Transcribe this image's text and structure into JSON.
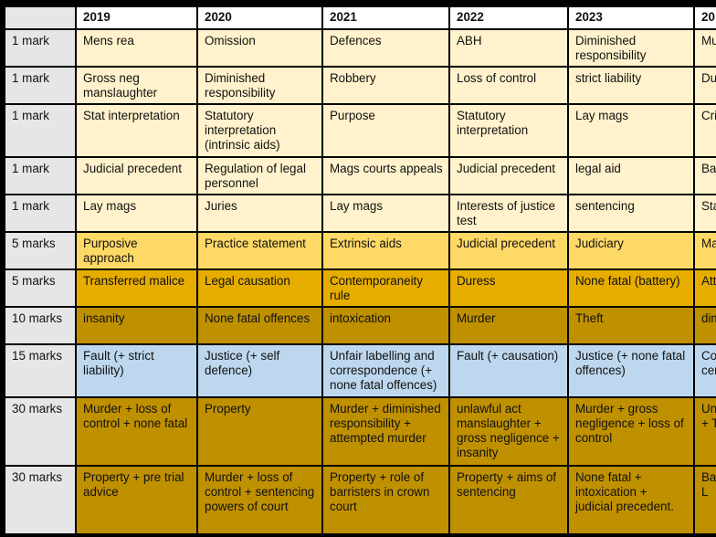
{
  "header": {
    "corner": "",
    "years": [
      "2019",
      "2020",
      "2021",
      "2022",
      "2023",
      "20"
    ]
  },
  "rows": [
    {
      "marks": "1 mark",
      "color": "#fff2cc",
      "cells": [
        "Mens rea",
        "Omission",
        "Defences",
        "ABH",
        "Diminished responsibility",
        "Mu"
      ]
    },
    {
      "marks": "1 mark",
      "color": "#fff2cc",
      "cells": [
        "Gross neg manslaughter",
        "Diminished responsibility",
        "Robbery",
        "Loss of control",
        "strict liability",
        "Du"
      ]
    },
    {
      "marks": "1 mark",
      "color": "#fff2cc",
      "cells": [
        "Stat interpretation",
        "Statutory interpretation (intrinsic aids)",
        "Purpose",
        "Statutory interpretation",
        "Lay mags",
        "Cri"
      ]
    },
    {
      "marks": "1 mark",
      "color": "#fff2cc",
      "cells": [
        "Judicial precedent",
        "Regulation of legal personnel",
        "Mags courts appeals",
        "Judicial precedent",
        "legal aid",
        "Ba"
      ]
    },
    {
      "marks": "1 mark",
      "color": "#fff2cc",
      "cells": [
        "Lay mags",
        "Juries",
        "Lay mags",
        "Interests of justice test",
        "sentencing",
        "Sta inte"
      ]
    },
    {
      "marks": "5 marks",
      "color": "#ffd966",
      "cells": [
        "Purposive approach",
        "Practice statement",
        "Extrinsic aids",
        "Judicial precedent",
        "Judiciary",
        "Ma"
      ]
    },
    {
      "marks": "5 marks",
      "color": "#e6ad00",
      "cells": [
        "Transferred malice",
        "Legal causation",
        "Contemporaneity rule",
        "Duress",
        "None fatal (battery)",
        "Att"
      ]
    },
    {
      "marks": "10 marks",
      "color": "#bf9000",
      "cells": [
        "insanity",
        "None fatal offences",
        "intoxication",
        "Murder",
        "Theft",
        "dim res"
      ]
    },
    {
      "marks": "15 marks",
      "color": "#bdd7ee",
      "cells": [
        "Fault (+ strict liability)",
        "Justice (+ self defence)",
        "Unfair labelling and correspondence (+ none fatal offences)",
        "Fault (+ causation)",
        "Justice (+ none fatal offences)",
        "Co and cer"
      ]
    },
    {
      "marks": "30 marks",
      "color": "#bf9000",
      "cells": [
        "Murder + loss of control + none fatal",
        "Property",
        "Murder + diminished responsibility + attempted murder",
        "unlawful act manslaughter + gross negligence + insanity",
        "Murder + gross negligence + loss of control",
        "Un ma + T + I"
      ]
    },
    {
      "marks": "30 marks",
      "color": "#bf9000",
      "cells": [
        "Property + pre trial advice",
        "Murder + loss of control + sentencing powers of court",
        "Property + role of barristers in crown court",
        "Property + aims of sentencing",
        "None fatal + intoxication + judicial precedent.",
        "Ba de + L"
      ]
    }
  ]
}
